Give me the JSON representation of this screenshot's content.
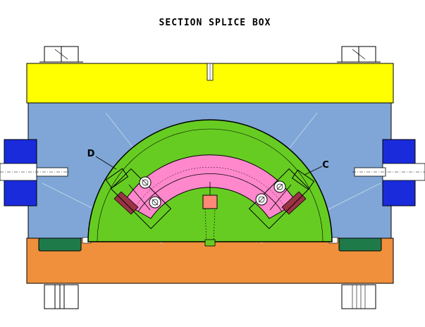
{
  "title": "SECTION SPLICE BOX",
  "callouts": {
    "left": "D",
    "right": "C"
  },
  "colors": {
    "top_block": "#ffff00",
    "body_block": "#7fa6d6",
    "base_block": "#f0903c",
    "center_dome": "#66cc22",
    "clamp_ring": "#ff88cc",
    "side_block": "#1a2bdc",
    "seal": "#1f7a4a",
    "insert": "#ff8877",
    "bolt": "#ffffff",
    "outline": "#000000"
  }
}
